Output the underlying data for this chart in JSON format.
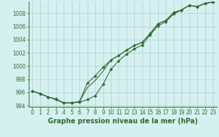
{
  "x": [
    0,
    1,
    2,
    3,
    4,
    5,
    6,
    7,
    8,
    9,
    10,
    11,
    12,
    13,
    14,
    15,
    16,
    17,
    18,
    19,
    20,
    21,
    22,
    23
  ],
  "line1": [
    996.2,
    995.8,
    995.3,
    995.0,
    994.4,
    994.4,
    994.6,
    997.4,
    998.5,
    999.8,
    1000.9,
    1001.6,
    1002.4,
    1003.1,
    1003.6,
    1004.9,
    1006.4,
    1006.9,
    1008.1,
    1008.5,
    1009.2,
    1009.0,
    1009.5,
    1009.7
  ],
  "line2": [
    996.2,
    995.8,
    995.3,
    994.9,
    994.4,
    994.4,
    994.5,
    994.9,
    995.5,
    997.2,
    999.5,
    1000.8,
    1001.8,
    1002.6,
    1003.2,
    1004.7,
    1006.1,
    1006.7,
    1007.9,
    1008.5,
    1009.2,
    1009.0,
    1009.5,
    1009.7
  ],
  "line3": [
    996.2,
    995.8,
    995.3,
    994.9,
    994.4,
    994.4,
    994.6,
    996.7,
    997.8,
    999.2,
    1000.9,
    1001.6,
    1002.4,
    1003.1,
    1003.6,
    1004.9,
    1006.4,
    1006.9,
    1008.1,
    1008.5,
    1009.2,
    1009.0,
    1009.5,
    1009.7
  ],
  "line_color": "#2d6a2d",
  "bg_color": "#d6f0f0",
  "grid_color": "#b0d4d4",
  "xlabel": "Graphe pression niveau de la mer (hPa)",
  "ylim": [
    993.8,
    1009.8
  ],
  "xlim": [
    -0.5,
    23.5
  ],
  "yticks": [
    994,
    996,
    998,
    1000,
    1002,
    1004,
    1006,
    1008
  ],
  "xticks": [
    0,
    1,
    2,
    3,
    4,
    5,
    6,
    7,
    8,
    9,
    10,
    11,
    12,
    13,
    14,
    15,
    16,
    17,
    18,
    19,
    20,
    21,
    22,
    23
  ],
  "xlabel_fontsize": 7,
  "tick_fontsize": 5.5
}
